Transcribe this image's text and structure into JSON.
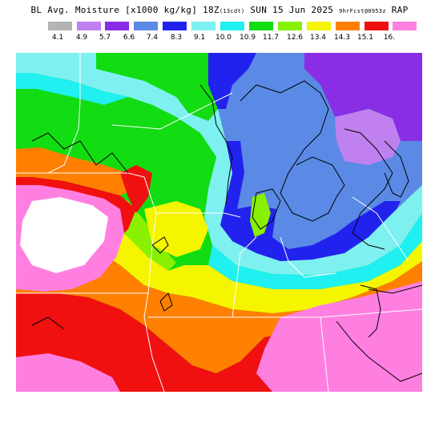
{
  "title": {
    "main": "BL Avg. Moisture [x1000 kg/kg] 18Z",
    "local_time": "(13cdt)",
    "date": "SUN 15 Jun 2025",
    "forecast": "9hrFcst@0953z",
    "model": "RAP"
  },
  "legend": {
    "colors": [
      "#b4b4b4",
      "#c080f0",
      "#8a2ee6",
      "#5a8ae6",
      "#2222ee",
      "#7ff0f0",
      "#20f0f0",
      "#12dc12",
      "#88f000",
      "#f5f500",
      "#ff8000",
      "#f01010",
      "#ff7fe0"
    ],
    "ticks": [
      "4.1",
      "4.9",
      "5.7",
      "6.6",
      "7.4",
      "8.3",
      "9.1",
      "10.0",
      "10.9",
      "11.7",
      "12.6",
      "13.4",
      "14.3",
      "15.1",
      "16."
    ]
  },
  "map": {
    "region": "Upper Midwest / Great Lakes",
    "colors": {
      "white": "#ffffff",
      "gray": "#b4b4b4",
      "lavender": "#c080f0",
      "purple": "#8a2ee6",
      "periwinkle": "#5a8ae6",
      "blue": "#2222ee",
      "light_cyan": "#7ff0f0",
      "cyan": "#20f0f0",
      "green": "#12dc12",
      "lime": "#88f000",
      "yellow": "#f5f500",
      "orange": "#ff8000",
      "red": "#f01010",
      "pink": "#ff7fe0",
      "boundary": "#ffffff",
      "contour": "#000000"
    }
  }
}
